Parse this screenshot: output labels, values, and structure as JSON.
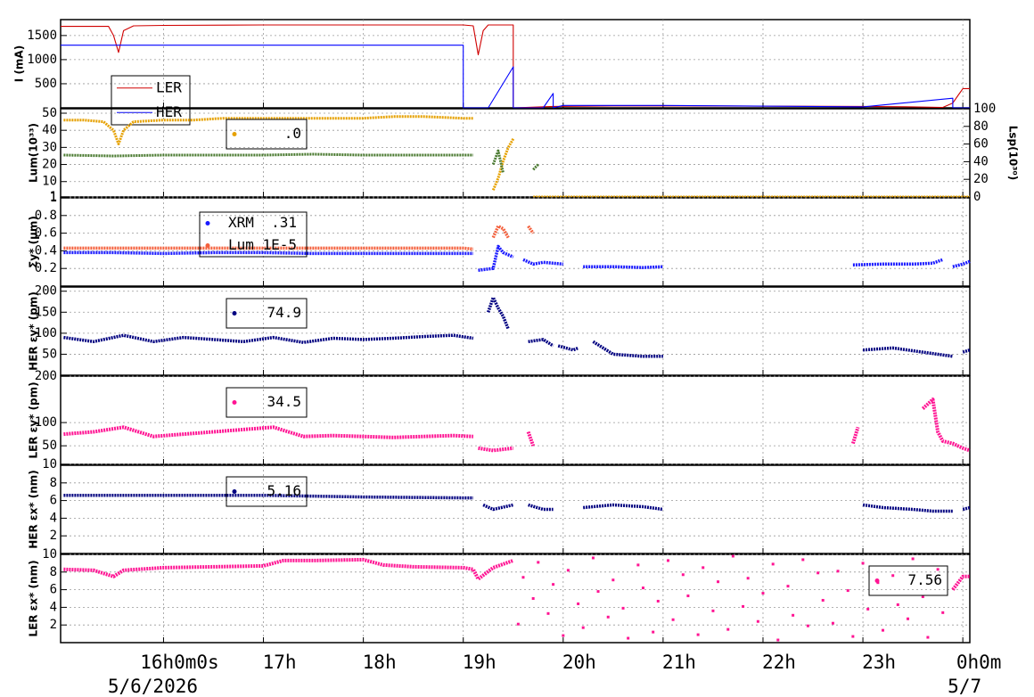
{
  "chart_data": [
    {
      "type": "line",
      "ylabel": "I (mA)",
      "ylim": [
        0,
        1830
      ],
      "yticks": [
        500,
        1000,
        1500
      ],
      "grid": true,
      "series": [
        {
          "name": "LER",
          "color": "#d00000",
          "x": [
            14.97,
            15.45,
            15.5,
            15.55,
            15.6,
            15.7,
            16,
            17,
            18,
            19,
            19.1,
            19.15,
            19.2,
            19.25,
            19.5,
            19.5,
            19.9,
            20.5,
            21.2,
            23.0,
            23.5,
            23.8,
            23.9,
            23.95,
            24.0,
            24.07
          ],
          "values": [
            1690,
            1690,
            1500,
            1150,
            1600,
            1700,
            1710,
            1720,
            1720,
            1720,
            1700,
            1100,
            1600,
            1720,
            1720,
            0,
            30,
            40,
            40,
            30,
            20,
            10,
            100,
            250,
            400,
            400
          ]
        },
        {
          "name": "HER",
          "color": "#0000ff",
          "x": [
            14.97,
            19.0,
            19.0,
            19.25,
            19.5,
            19.5,
            19.8,
            19.9,
            19.9,
            20.0,
            21.0,
            23.0,
            23.9,
            23.9,
            24.07
          ],
          "values": [
            1300,
            1300,
            0,
            0,
            850,
            0,
            0,
            300,
            0,
            50,
            50,
            20,
            200,
            0,
            0
          ]
        }
      ]
    },
    {
      "type": "scatter",
      "ylabel": "Lum(10³³)",
      "ylim": [
        1,
        52.6
      ],
      "yticks": [
        1,
        10,
        20,
        30,
        40,
        50
      ],
      "y2label": "Lsp(10³⁰)",
      "y2lim": [
        0,
        100
      ],
      "y2ticks": [
        0,
        20,
        40,
        60,
        80,
        100
      ],
      "grid": true,
      "series": [
        {
          "name": ".0",
          "color": "#e6a100",
          "x": [
            15,
            15.2,
            15.4,
            15.5,
            15.55,
            15.6,
            15.7,
            16,
            16.3,
            16.6,
            17,
            17.3,
            17.6,
            18,
            18.3,
            18.6,
            19,
            19.1,
            null,
            19.3,
            19.35,
            19.4,
            19.45,
            19.5,
            null,
            19.7,
            20,
            20.5,
            21,
            21.5,
            22,
            22.5,
            23,
            23.5,
            24.07
          ],
          "values": [
            46,
            46,
            45,
            40,
            32,
            40,
            45,
            46,
            46,
            47,
            47,
            47,
            47,
            47,
            48,
            48,
            47,
            47,
            null,
            5,
            12,
            22,
            30,
            35,
            null,
            1,
            1,
            1,
            1,
            1,
            1,
            1,
            1,
            1,
            1
          ]
        },
        {
          "color": "#4a7a30",
          "x": [
            15,
            15.5,
            16,
            16.5,
            17,
            17.5,
            18,
            18.5,
            19,
            19.1,
            null,
            19.3,
            19.35,
            19.4,
            null,
            19.7,
            19.75
          ],
          "values": [
            25.5,
            25,
            25.5,
            25.5,
            25.5,
            26,
            25.5,
            25.5,
            25.5,
            25.5,
            null,
            20,
            28,
            15,
            null,
            17,
            20
          ]
        }
      ]
    },
    {
      "type": "scatter",
      "ylabel": "Σy* (µm)",
      "ylim": [
        0,
        1
      ],
      "yticks": [
        0.2,
        0.4,
        0.6,
        0.8,
        1
      ],
      "grid": true,
      "series": [
        {
          "name": "XRM  .31",
          "color": "#1a1aff",
          "x": [
            15,
            15.5,
            16,
            16.5,
            17,
            17.5,
            18,
            18.5,
            19,
            19.1,
            null,
            19.15,
            19.3,
            19.35,
            19.4,
            19.5,
            null,
            19.6,
            19.7,
            19.8,
            20.0,
            null,
            20.2,
            20.5,
            20.8,
            21.0,
            null,
            22.9,
            23.2,
            23.5,
            23.7,
            23.8,
            null,
            23.9,
            24.0,
            24.07
          ],
          "values": [
            0.38,
            0.38,
            0.37,
            0.38,
            0.38,
            0.37,
            0.37,
            0.37,
            0.37,
            0.37,
            null,
            0.18,
            0.2,
            0.45,
            0.38,
            0.33,
            null,
            0.3,
            0.25,
            0.27,
            0.25,
            null,
            0.22,
            0.22,
            0.21,
            0.22,
            null,
            0.24,
            0.25,
            0.25,
            0.26,
            0.3,
            null,
            0.22,
            0.25,
            0.28
          ]
        },
        {
          "name": "Lum 1E-5",
          "color": "#f4603c",
          "x": [
            15,
            16,
            17,
            18,
            19,
            19.1,
            null,
            19.3,
            19.35,
            19.4,
            19.45,
            null,
            19.65,
            19.7
          ],
          "values": [
            0.43,
            0.43,
            0.43,
            0.43,
            0.43,
            0.42,
            null,
            0.55,
            0.68,
            0.65,
            0.55,
            null,
            0.68,
            0.6
          ]
        }
      ]
    },
    {
      "type": "scatter",
      "ylabel": "HER εy* (pm)",
      "ylim": [
        0,
        210
      ],
      "yticks": [
        50,
        100,
        150,
        200
      ],
      "grid": true,
      "series": [
        {
          "name": "74.9",
          "color": "#000080",
          "x": [
            15,
            15.3,
            15.6,
            15.9,
            16.2,
            16.5,
            16.8,
            17.1,
            17.4,
            17.7,
            18,
            18.3,
            18.6,
            18.9,
            19.1,
            null,
            19.25,
            19.3,
            19.35,
            19.4,
            19.45,
            null,
            19.65,
            19.8,
            19.9,
            null,
            19.95,
            20.1,
            20.15,
            null,
            20.3,
            20.5,
            20.8,
            21.0,
            null,
            23.0,
            23.3,
            23.6,
            23.9,
            null,
            24.0,
            24.07
          ],
          "values": [
            90,
            80,
            95,
            80,
            90,
            85,
            80,
            90,
            78,
            88,
            85,
            88,
            92,
            95,
            88,
            null,
            150,
            185,
            160,
            140,
            110,
            null,
            80,
            85,
            70,
            null,
            70,
            60,
            65,
            null,
            80,
            50,
            45,
            45,
            null,
            60,
            65,
            55,
            45,
            null,
            55,
            60
          ]
        }
      ]
    },
    {
      "type": "scatter",
      "ylabel": "LER εy* (pm)",
      "ylim": [
        10,
        200
      ],
      "yticks": [
        10,
        50,
        100,
        200
      ],
      "grid": true,
      "series": [
        {
          "name": "34.5",
          "color": "#ff1493",
          "x": [
            15,
            15.3,
            15.6,
            15.9,
            16.2,
            16.5,
            16.8,
            17.1,
            17.4,
            17.7,
            18,
            18.3,
            18.6,
            18.9,
            19.1,
            null,
            19.15,
            19.3,
            19.5,
            null,
            19.65,
            19.7,
            null,
            22.9,
            22.95,
            null,
            23.6,
            23.7,
            23.75,
            23.8,
            23.9,
            24.0,
            24.07
          ],
          "values": [
            75,
            80,
            90,
            70,
            75,
            80,
            85,
            90,
            70,
            72,
            70,
            68,
            70,
            72,
            70,
            null,
            45,
            40,
            45,
            null,
            80,
            50,
            null,
            55,
            90,
            null,
            130,
            150,
            80,
            60,
            55,
            45,
            40
          ]
        }
      ]
    },
    {
      "type": "scatter",
      "ylabel": "HER εx* (nm)",
      "ylim": [
        0,
        10
      ],
      "yticks": [
        2,
        4,
        6,
        8
      ],
      "grid": true,
      "series": [
        {
          "name": "5.16",
          "color": "#000080",
          "x": [
            15,
            16,
            17,
            18,
            19,
            19.1,
            null,
            19.2,
            19.3,
            19.5,
            null,
            19.65,
            19.8,
            19.9,
            null,
            20.2,
            20.5,
            20.8,
            21,
            null,
            23,
            23.2,
            23.5,
            23.7,
            23.9,
            null,
            24,
            24.07
          ],
          "values": [
            6.6,
            6.6,
            6.6,
            6.4,
            6.3,
            6.3,
            null,
            5.5,
            5,
            5.5,
            null,
            5.5,
            5,
            5,
            null,
            5.2,
            5.5,
            5.3,
            5,
            null,
            5.5,
            5.2,
            5,
            4.8,
            4.8,
            null,
            5,
            5.2
          ]
        }
      ]
    },
    {
      "type": "scatter",
      "ylabel": "LER εx* (nm)",
      "ylim": [
        0,
        10
      ],
      "yticks": [
        2,
        4,
        6,
        8,
        10
      ],
      "grid": true,
      "xlim": [
        14.97,
        24.07
      ],
      "xticks": [
        {
          "value": 16,
          "label": "16h0m0s"
        },
        {
          "value": 17,
          "label": "17h"
        },
        {
          "value": 18,
          "label": "18h"
        },
        {
          "value": 19,
          "label": "19h"
        },
        {
          "value": 20,
          "label": "20h"
        },
        {
          "value": 21,
          "label": "21h"
        },
        {
          "value": 22,
          "label": "22h"
        },
        {
          "value": 23,
          "label": "23h"
        },
        {
          "value": 24,
          "label": "0h0m"
        }
      ],
      "dates": [
        "5/6/2026",
        "5/7"
      ],
      "series": [
        {
          "name": "7.56",
          "color": "#ff1493",
          "x": [
            15,
            15.3,
            15.5,
            15.6,
            16,
            16.5,
            17,
            17.2,
            17.5,
            18,
            18.2,
            18.5,
            19,
            19.1,
            19.15,
            19.3,
            19.5,
            null,
            23.9,
            24,
            24.07
          ],
          "values": [
            8.3,
            8.2,
            7.5,
            8.2,
            8.5,
            8.6,
            8.7,
            9.3,
            9.3,
            9.4,
            8.8,
            8.6,
            8.5,
            8.3,
            7.2,
            8.5,
            9.3,
            null,
            6,
            7.5,
            7.5
          ]
        },
        {
          "color": "#ff1493",
          "style": "points",
          "x": [
            19.55,
            19.6,
            19.7,
            19.75,
            19.85,
            19.9,
            20.0,
            20.05,
            20.15,
            20.2,
            20.3,
            20.35,
            20.45,
            20.5,
            20.6,
            20.65,
            20.75,
            20.8,
            20.9,
            20.95,
            21.05,
            21.1,
            21.2,
            21.25,
            21.35,
            21.4,
            21.5,
            21.55,
            21.65,
            21.7,
            21.8,
            21.85,
            21.95,
            22.0,
            22.1,
            22.15,
            22.25,
            22.3,
            22.4,
            22.45,
            22.55,
            22.6,
            22.7,
            22.75,
            22.85,
            22.9,
            23.0,
            23.05,
            23.15,
            23.2,
            23.3,
            23.35,
            23.45,
            23.5,
            23.6,
            23.65,
            23.75,
            23.8
          ],
          "values": [
            2.1,
            7.4,
            5.0,
            9.1,
            3.3,
            6.6,
            0.8,
            8.2,
            4.4,
            1.7,
            9.6,
            5.8,
            2.9,
            7.1,
            3.9,
            0.5,
            8.8,
            6.2,
            1.2,
            4.7,
            9.3,
            2.6,
            7.7,
            5.3,
            0.9,
            8.5,
            3.6,
            6.9,
            1.5,
            9.8,
            4.1,
            7.3,
            2.4,
            5.6,
            8.9,
            0.3,
            6.4,
            3.1,
            9.4,
            1.9,
            7.9,
            4.8,
            2.2,
            8.1,
            5.9,
            0.7,
            9.0,
            3.8,
            6.8,
            1.4,
            7.6,
            4.3,
            2.7,
            9.5,
            5.2,
            0.6,
            8.3,
            3.4
          ]
        }
      ]
    }
  ]
}
